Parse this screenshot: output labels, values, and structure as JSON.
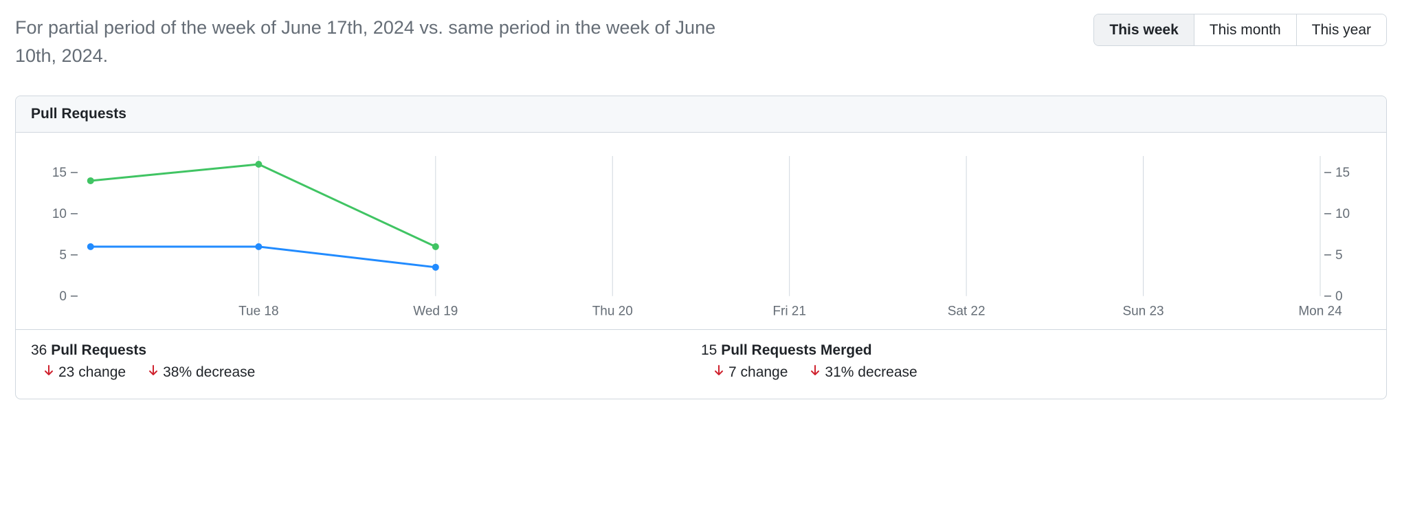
{
  "header": {
    "description": "For partial period of the week of June 17th, 2024 vs. same period in the week of June 10th, 2024.",
    "range_tabs": {
      "items": [
        "This week",
        "This month",
        "This year"
      ],
      "active_index": 0
    }
  },
  "panel": {
    "title": "Pull Requests",
    "chart": {
      "type": "line",
      "background_color": "#ffffff",
      "grid_color": "#d0d7de",
      "axis_text_color": "#656d76",
      "x_labels": [
        "Tue 18",
        "Wed 19",
        "Thu 20",
        "Fri 21",
        "Sat 22",
        "Sun 23",
        "Mon 24"
      ],
      "left_axis": {
        "ticks": [
          0,
          5,
          10,
          15
        ],
        "min": 0,
        "max": 17
      },
      "right_axis": {
        "ticks": [
          0,
          5,
          10,
          15
        ],
        "min": 0,
        "max": 17
      },
      "series": [
        {
          "name": "pull-requests",
          "color": "#40c463",
          "line_width": 3,
          "marker_radius": 5,
          "points": [
            {
              "x_index": -0.95,
              "y": 14
            },
            {
              "x_index": 0,
              "y": 16
            },
            {
              "x_index": 1,
              "y": 6
            }
          ]
        },
        {
          "name": "merged",
          "color": "#218bff",
          "line_width": 3,
          "marker_radius": 5,
          "points": [
            {
              "x_index": -0.95,
              "y": 6
            },
            {
              "x_index": 0,
              "y": 6
            },
            {
              "x_index": 1,
              "y": 3.5
            }
          ]
        }
      ]
    },
    "stats": [
      {
        "count": "36",
        "label": "Pull Requests",
        "deltas": [
          {
            "direction": "down",
            "text": "23 change",
            "arrow_color": "#cf222e"
          },
          {
            "direction": "down",
            "text": "38% decrease",
            "arrow_color": "#cf222e"
          }
        ]
      },
      {
        "count": "15",
        "label": "Pull Requests Merged",
        "deltas": [
          {
            "direction": "down",
            "text": "7 change",
            "arrow_color": "#cf222e"
          },
          {
            "direction": "down",
            "text": "31% decrease",
            "arrow_color": "#cf222e"
          }
        ]
      }
    ]
  }
}
